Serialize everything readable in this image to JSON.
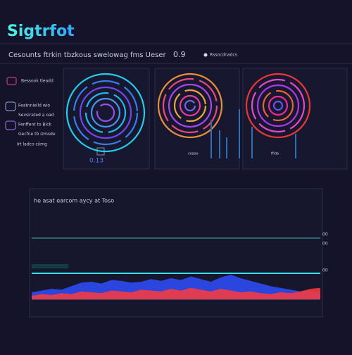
{
  "header": {
    "title": "Sigtrfot",
    "subtitle": "Cesounts ftrkin tbzkous swelowag fms Ueser",
    "value": "0.9",
    "search": "Rssocdnadcs"
  },
  "sidebar": {
    "heading": "Bessook tleadd",
    "items": [
      "Featnnielld wio",
      "Sevsirated a oad",
      "Fenffent to Bick",
      "Gecfne tb izmsde",
      "Irt ladco ciimg"
    ],
    "reading": "0.13"
  },
  "panels": [
    {
      "label": "cosoo"
    },
    {
      "label": "ffide"
    }
  ],
  "chart": {
    "title": "he asat earcom aycy at Toso",
    "ylim": [
      0,
      10
    ],
    "right_labels": [
      "00",
      "00",
      "00"
    ],
    "series": [
      {
        "name": "blue",
        "color": "#2f4dff",
        "values": [
          0.8,
          1.0,
          1.2,
          1.1,
          1.5,
          1.9,
          2.0,
          1.8,
          2.2,
          2.1,
          1.9,
          2.0,
          2.3,
          2.1,
          2.4,
          2.2,
          2.6,
          2.3,
          2.0,
          2.5,
          2.8,
          2.4,
          2.1,
          1.8,
          1.5,
          1.3,
          1.1,
          0.9,
          1.0,
          0.8
        ]
      },
      {
        "name": "red",
        "color": "#ff3b3b",
        "values": [
          0.4,
          0.6,
          0.5,
          0.7,
          0.6,
          0.9,
          0.8,
          0.7,
          1.0,
          0.9,
          0.8,
          1.1,
          1.0,
          0.9,
          1.2,
          1.0,
          1.3,
          1.1,
          0.9,
          1.2,
          1.0,
          0.8,
          0.9,
          0.7,
          0.6,
          0.8,
          0.7,
          0.9,
          1.2,
          1.3
        ]
      }
    ]
  }
}
